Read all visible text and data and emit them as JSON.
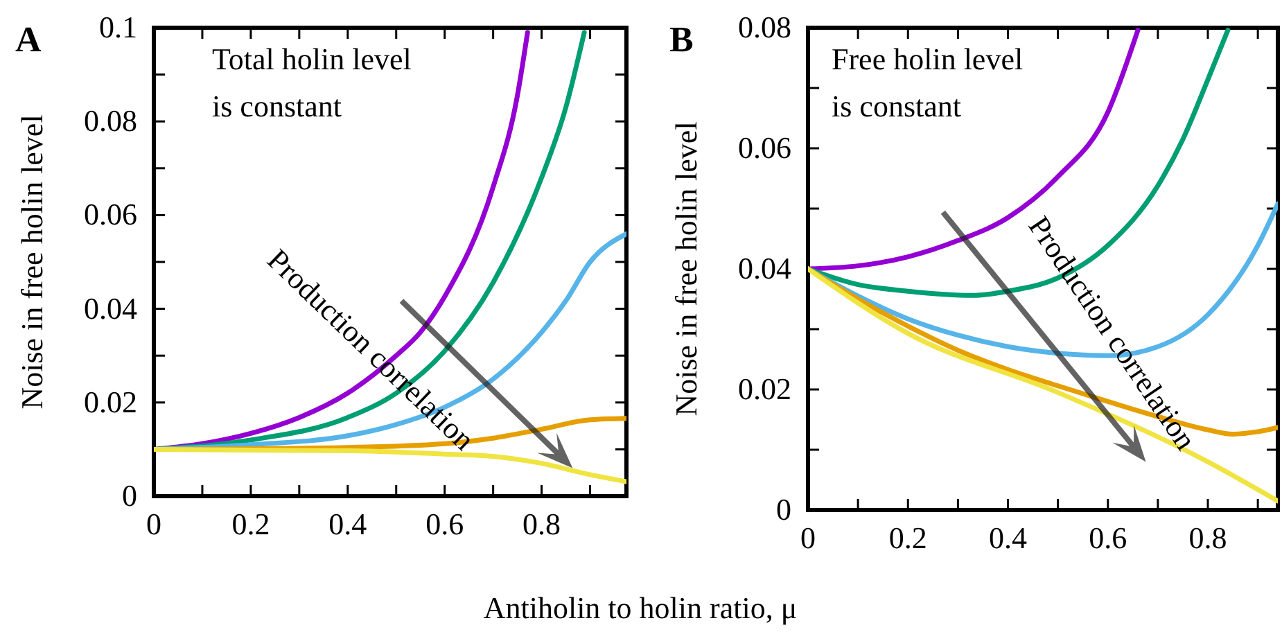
{
  "chart_data": [
    {
      "type": "line",
      "title": "A",
      "xlabel": "Antiholin to holin ratio, μ",
      "ylabel": "Noise in free holin level",
      "annotations": [
        "Total holin level\nis constant",
        "Production correlation"
      ],
      "xlim": [
        0,
        0.975
      ],
      "ylim": [
        0,
        0.1
      ],
      "xticks": [
        0,
        {
          "value": 0.1,
          "label": null
        },
        0.2,
        {
          "value": 0.3,
          "label": null
        },
        0.4,
        {
          "value": 0.5,
          "label": null
        },
        0.6,
        {
          "value": 0.7,
          "label": null
        },
        0.8,
        {
          "value": 0.9,
          "label": null
        }
      ],
      "yticks": [
        0,
        {
          "value": 0.01,
          "label": null
        },
        0.02,
        {
          "value": 0.03,
          "label": null
        },
        0.04,
        {
          "value": 0.05,
          "label": null
        },
        0.06,
        {
          "value": 0.07,
          "label": null
        },
        0.08,
        {
          "value": 0.09,
          "label": null
        },
        0.1
      ],
      "grid": false,
      "marker": "none",
      "line_style": "solid",
      "series": [
        {
          "color": "#9400d3",
          "x": [
            0,
            0.1,
            0.2,
            0.3,
            0.4,
            0.5,
            0.55,
            0.6,
            0.7,
            0.75,
            0.771
          ],
          "values": [
            0.01,
            0.0112,
            0.0134,
            0.0168,
            0.022,
            0.03,
            0.035,
            0.0426,
            0.066,
            0.0855,
            0.099
          ]
        },
        {
          "color": "#009e73",
          "x": [
            0,
            0.2,
            0.4,
            0.5,
            0.6,
            0.7,
            0.8,
            0.85,
            0.888
          ],
          "values": [
            0.01,
            0.012,
            0.0168,
            0.022,
            0.031,
            0.0456,
            0.068,
            0.083,
            0.099
          ]
        },
        {
          "color": "#56b4e9",
          "x": [
            0,
            0.2,
            0.4,
            0.5,
            0.6,
            0.7,
            0.8,
            0.85,
            0.9,
            0.975
          ],
          "values": [
            0.01,
            0.011,
            0.0129,
            0.0153,
            0.019,
            0.025,
            0.035,
            0.0417,
            0.05,
            0.056
          ]
        },
        {
          "color": "#e69f00",
          "x": [
            0,
            0.4,
            0.6,
            0.7,
            0.8,
            0.9,
            0.975
          ],
          "values": [
            0.01,
            0.0104,
            0.0112,
            0.0124,
            0.0143,
            0.0163,
            0.0166
          ]
        },
        {
          "color": "#f0e442",
          "x": [
            0,
            0.4,
            0.6,
            0.7,
            0.8,
            0.9,
            0.975
          ],
          "values": [
            0.01,
            0.0097,
            0.009,
            0.0085,
            0.007,
            0.0046,
            0.0031
          ]
        }
      ]
    },
    {
      "type": "line",
      "title": "B",
      "ylabel": "Noise in free holin level",
      "annotations": [
        "Free holin level\nis constant",
        "Production correlation"
      ],
      "xlim": [
        0,
        0.94
      ],
      "ylim": [
        0,
        0.08
      ],
      "xticks": [
        0,
        {
          "value": 0.1,
          "label": null
        },
        0.2,
        {
          "value": 0.3,
          "label": null
        },
        0.4,
        {
          "value": 0.5,
          "label": null
        },
        0.6,
        {
          "value": 0.7,
          "label": null
        },
        0.8,
        {
          "value": 0.9,
          "label": null
        }
      ],
      "yticks": [
        0,
        {
          "value": 0.01,
          "label": null
        },
        0.02,
        {
          "value": 0.03,
          "label": null
        },
        0.04,
        {
          "value": 0.05,
          "label": null
        },
        0.06,
        {
          "value": 0.07,
          "label": null
        },
        0.08
      ],
      "grid": false,
      "marker": "none",
      "line_style": "solid",
      "series": [
        {
          "color": "#9400d3",
          "x": [
            0,
            0.1,
            0.2,
            0.3,
            0.4,
            0.5,
            0.6,
            0.66
          ],
          "values": [
            0.04,
            0.0405,
            0.042,
            0.0447,
            0.0485,
            0.0553,
            0.066,
            0.0796
          ]
        },
        {
          "color": "#009e73",
          "x": [
            0,
            0.1,
            0.2,
            0.33,
            0.4,
            0.5,
            0.6,
            0.7,
            0.75,
            0.8,
            0.84
          ],
          "values": [
            0.04,
            0.0374,
            0.0363,
            0.0356,
            0.0363,
            0.0385,
            0.0439,
            0.0538,
            0.0615,
            0.0714,
            0.0796
          ]
        },
        {
          "color": "#56b4e9",
          "x": [
            0,
            0.1,
            0.2,
            0.3,
            0.4,
            0.5,
            0.6,
            0.7,
            0.8,
            0.9,
            0.94
          ],
          "values": [
            0.04,
            0.0355,
            0.0317,
            0.029,
            0.0271,
            0.026,
            0.0256,
            0.0271,
            0.0324,
            0.0439,
            0.0508
          ]
        },
        {
          "color": "#e69f00",
          "x": [
            0,
            0.1,
            0.2,
            0.3,
            0.4,
            0.5,
            0.6,
            0.7,
            0.8,
            0.85,
            0.9,
            0.94
          ],
          "values": [
            0.04,
            0.035,
            0.0305,
            0.0265,
            0.0233,
            0.0206,
            0.018,
            0.0155,
            0.0133,
            0.0126,
            0.013,
            0.0137
          ]
        },
        {
          "color": "#f0e442",
          "x": [
            0,
            0.2,
            0.5,
            0.8,
            0.94
          ],
          "values": [
            0.04,
            0.0293,
            0.0195,
            0.008,
            0.0015
          ]
        }
      ]
    }
  ]
}
